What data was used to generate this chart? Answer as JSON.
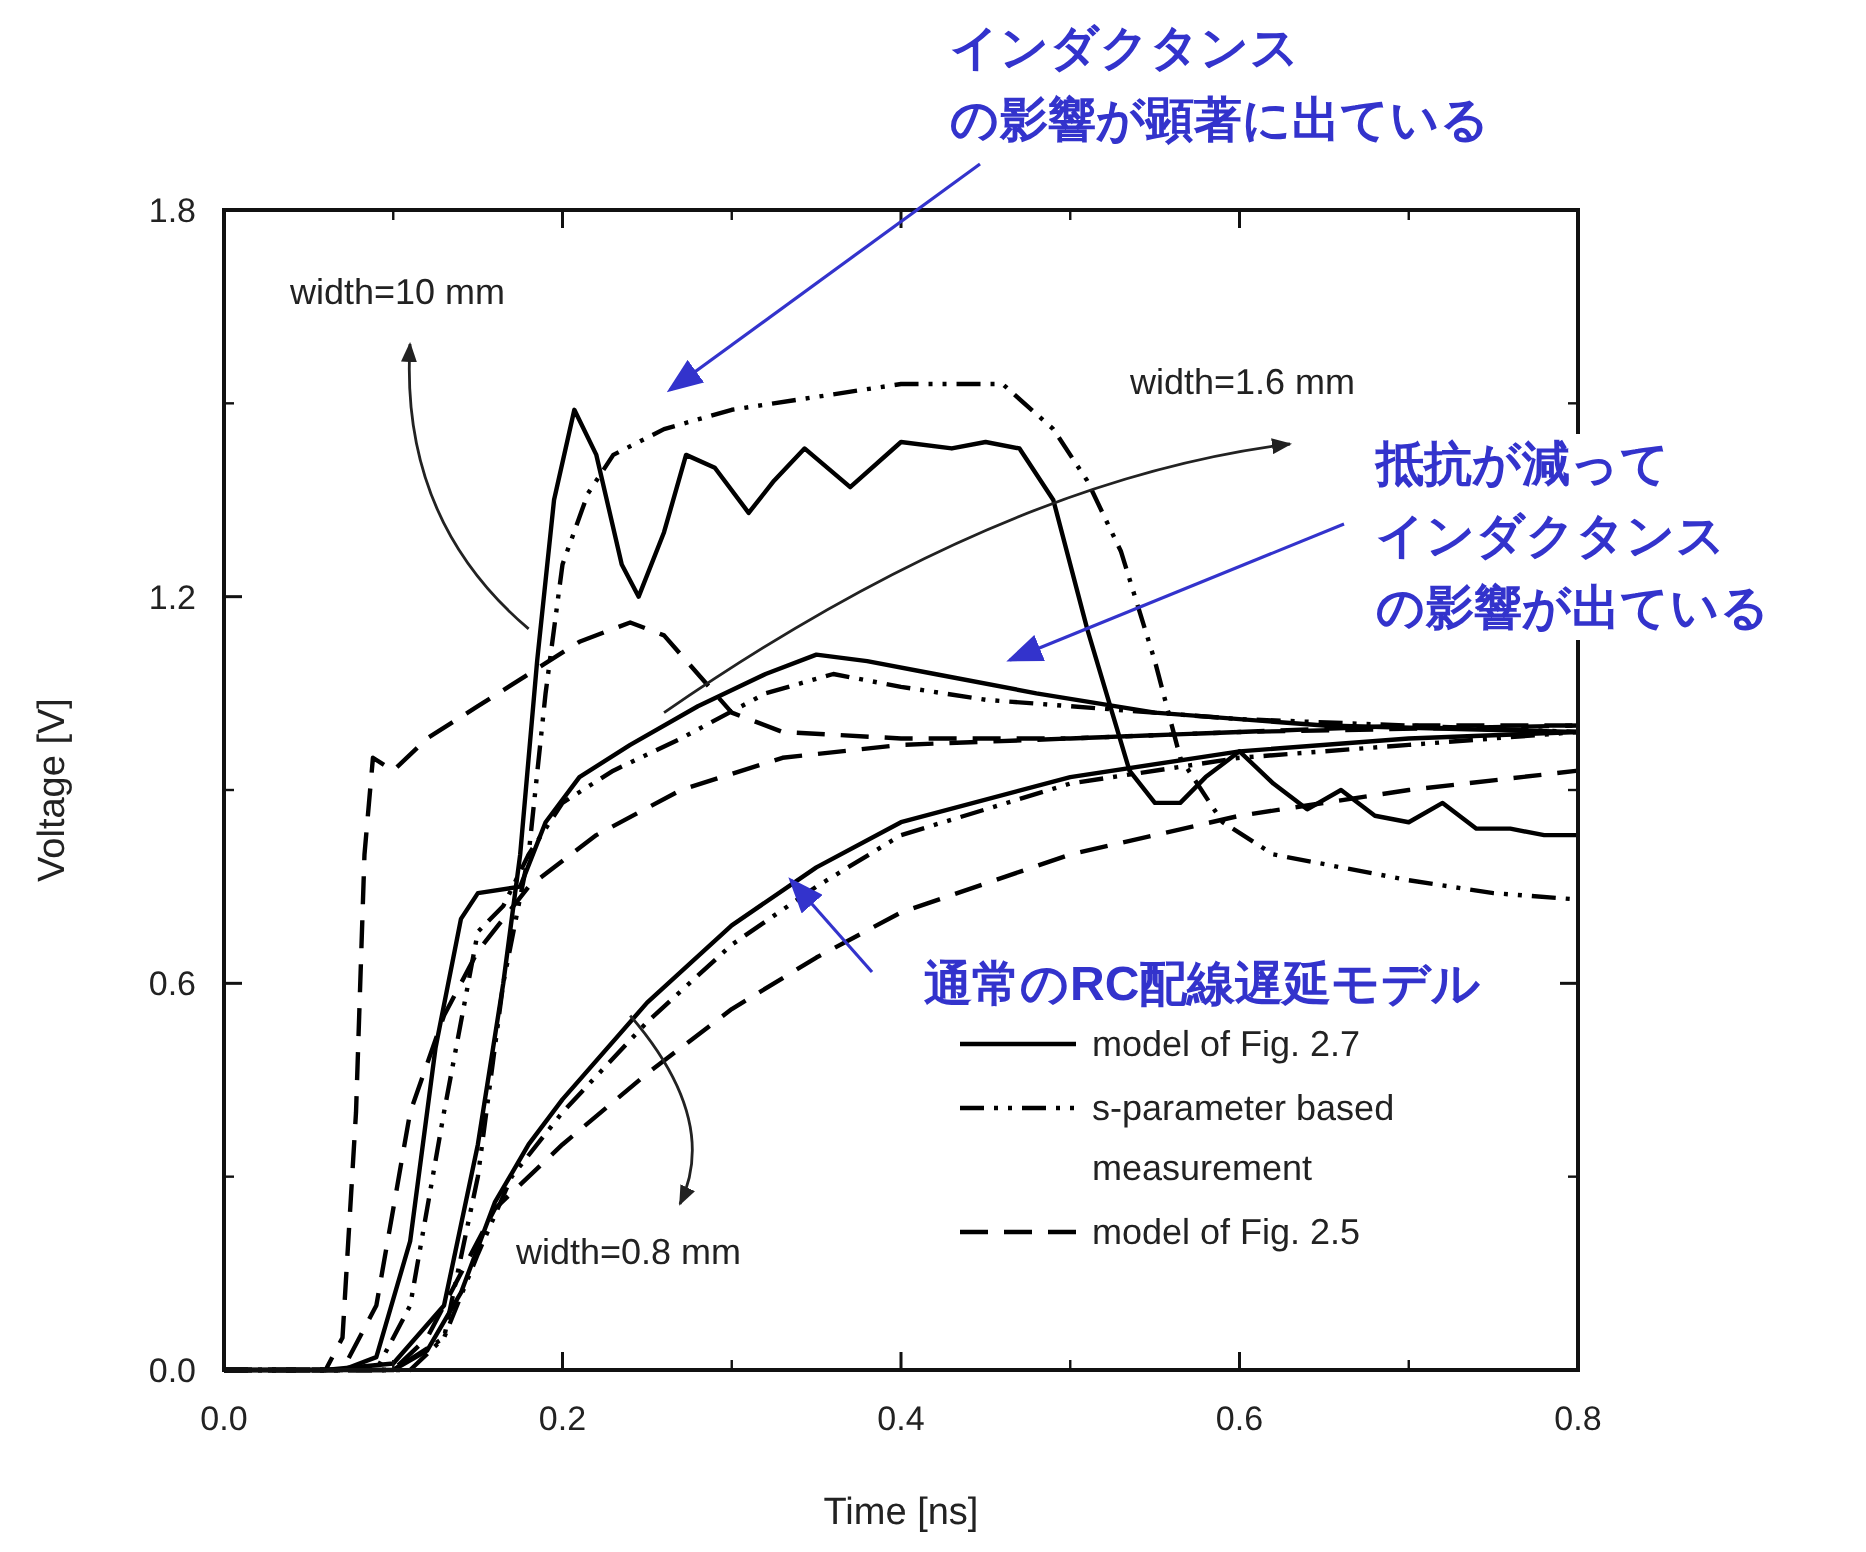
{
  "chart_data": {
    "type": "line",
    "xlabel": "Time [ns]",
    "ylabel": "Voltage [V]",
    "xlim": [
      0,
      0.8
    ],
    "xticks": [
      {
        "value": 0,
        "label": "0.0"
      },
      {
        "value": 0.2,
        "label": "0.2"
      },
      {
        "value": 0.4,
        "label": "0.4"
      },
      {
        "value": 0.6,
        "label": "0.6"
      },
      {
        "value": 0.8,
        "label": "0.8"
      }
    ],
    "ylim": [
      0,
      1.8
    ],
    "yticks": [
      {
        "value": 0,
        "label": "0.0"
      },
      {
        "value": 0.6,
        "label": "0.6"
      },
      {
        "value": 1.2,
        "label": "1.2"
      },
      {
        "value": 1.8,
        "label": "1.8"
      }
    ],
    "grid": false,
    "legend": "bottom right",
    "series": [
      {
        "name": "model of Fig. 2.7",
        "color": "#000000",
        "line_style": "solid",
        "x": [
          0,
          0.06,
          0.1,
          0.13,
          0.15,
          0.165,
          0.175,
          0.185,
          0.195,
          0.207,
          0.22,
          0.235,
          0.245,
          0.26,
          0.273,
          0.29,
          0.31,
          0.325,
          0.343,
          0.37,
          0.4,
          0.43,
          0.45,
          0.47,
          0.49,
          0.51,
          0.535,
          0.55,
          0.565,
          0.58,
          0.6,
          0.62,
          0.64,
          0.66,
          0.68,
          0.7,
          0.72,
          0.74,
          0.76,
          0.78,
          0.8
        ],
        "values": [
          0,
          0,
          0.01,
          0.1,
          0.35,
          0.6,
          0.8,
          1.1,
          1.35,
          1.49,
          1.42,
          1.25,
          1.2,
          1.3,
          1.42,
          1.4,
          1.33,
          1.38,
          1.43,
          1.37,
          1.44,
          1.43,
          1.44,
          1.43,
          1.35,
          1.15,
          0.93,
          0.88,
          0.88,
          0.92,
          0.96,
          0.91,
          0.87,
          0.9,
          0.86,
          0.85,
          0.88,
          0.84,
          0.84,
          0.83,
          0.83
        ]
      },
      {
        "name": "s-parameter based measurement",
        "color": "#000000",
        "line_style": "dashdot",
        "x": [
          0,
          0.1,
          0.13,
          0.15,
          0.165,
          0.18,
          0.19,
          0.2,
          0.215,
          0.23,
          0.26,
          0.3,
          0.35,
          0.4,
          0.46,
          0.49,
          0.51,
          0.53,
          0.55,
          0.565,
          0.59,
          0.62,
          0.66,
          0.7,
          0.75,
          0.8
        ],
        "values": [
          0,
          0,
          0.05,
          0.3,
          0.6,
          0.8,
          1.05,
          1.25,
          1.36,
          1.42,
          1.46,
          1.49,
          1.51,
          1.53,
          1.53,
          1.46,
          1.38,
          1.27,
          1.1,
          0.95,
          0.85,
          0.8,
          0.78,
          0.76,
          0.74,
          0.73
        ]
      },
      {
        "name": "model of Fig. 2.5",
        "color": "#000000",
        "line_style": "dashed",
        "x": [
          0,
          0.06,
          0.07,
          0.078,
          0.083,
          0.088,
          0.1,
          0.12,
          0.15,
          0.18,
          0.21,
          0.24,
          0.26,
          0.28,
          0.3,
          0.33,
          0.4,
          0.5,
          0.6,
          0.7,
          0.8
        ],
        "values": [
          0,
          0,
          0.05,
          0.4,
          0.8,
          0.95,
          0.93,
          0.98,
          1.03,
          1.08,
          1.13,
          1.16,
          1.14,
          1.08,
          1.02,
          0.99,
          0.98,
          0.98,
          0.99,
          1.0,
          1.0
        ]
      },
      {
        "color": "#000000",
        "line_style": "solid",
        "x": [
          0,
          0.07,
          0.09,
          0.11,
          0.125,
          0.14,
          0.15,
          0.175,
          0.19,
          0.21,
          0.24,
          0.28,
          0.32,
          0.35,
          0.38,
          0.42,
          0.48,
          0.55,
          0.65,
          0.8
        ],
        "values": [
          0,
          0,
          0.02,
          0.2,
          0.5,
          0.7,
          0.74,
          0.75,
          0.85,
          0.92,
          0.97,
          1.03,
          1.08,
          1.11,
          1.1,
          1.08,
          1.05,
          1.02,
          1.0,
          0.99
        ]
      },
      {
        "color": "#000000",
        "line_style": "dashdot",
        "x": [
          0,
          0.09,
          0.11,
          0.13,
          0.15,
          0.165,
          0.18,
          0.2,
          0.23,
          0.27,
          0.32,
          0.36,
          0.4,
          0.45,
          0.5,
          0.6,
          0.7,
          0.8
        ],
        "values": [
          0,
          0,
          0.1,
          0.4,
          0.68,
          0.72,
          0.8,
          0.88,
          0.93,
          0.98,
          1.05,
          1.08,
          1.06,
          1.04,
          1.03,
          1.01,
          1.0,
          0.99
        ]
      },
      {
        "color": "#000000",
        "line_style": "dashed",
        "x": [
          0,
          0.07,
          0.09,
          0.11,
          0.13,
          0.15,
          0.18,
          0.22,
          0.27,
          0.33,
          0.4,
          0.5,
          0.6,
          0.8
        ],
        "values": [
          0,
          0,
          0.1,
          0.4,
          0.55,
          0.65,
          0.75,
          0.83,
          0.9,
          0.95,
          0.97,
          0.98,
          0.99,
          1.0
        ]
      },
      {
        "color": "#000000",
        "line_style": "solid",
        "x": [
          0,
          0.1,
          0.12,
          0.14,
          0.16,
          0.18,
          0.2,
          0.25,
          0.3,
          0.35,
          0.4,
          0.5,
          0.6,
          0.7,
          0.8
        ],
        "values": [
          0,
          0,
          0.03,
          0.12,
          0.26,
          0.35,
          0.42,
          0.57,
          0.69,
          0.78,
          0.85,
          0.92,
          0.96,
          0.98,
          0.99
        ]
      },
      {
        "color": "#000000",
        "line_style": "dashdot",
        "x": [
          0,
          0.11,
          0.13,
          0.15,
          0.17,
          0.2,
          0.25,
          0.3,
          0.35,
          0.4,
          0.5,
          0.6,
          0.7,
          0.8
        ],
        "values": [
          0,
          0,
          0.05,
          0.18,
          0.3,
          0.4,
          0.54,
          0.66,
          0.75,
          0.83,
          0.91,
          0.95,
          0.97,
          0.99
        ]
      },
      {
        "color": "#000000",
        "line_style": "dashed",
        "x": [
          0,
          0.1,
          0.12,
          0.14,
          0.16,
          0.2,
          0.25,
          0.3,
          0.35,
          0.4,
          0.5,
          0.6,
          0.7,
          0.8
        ],
        "values": [
          0,
          0,
          0.05,
          0.15,
          0.25,
          0.35,
          0.46,
          0.56,
          0.64,
          0.71,
          0.8,
          0.86,
          0.9,
          0.93
        ]
      }
    ],
    "annotations": [
      {
        "text": "width=10 mm",
        "x": 0.18,
        "y": 1.15
      },
      {
        "text": "width=1.6 mm",
        "x": 0.26,
        "y": 1.02
      },
      {
        "text": "width=0.8 mm",
        "x": 0.24,
        "y": 0.55
      },
      "インダクタンスの影響が顕著に出ている",
      "抵抗が減ってインダクタンスの影響が出ている",
      {
        "text": "通常のRC配線遅延モデル",
        "x": 0.335,
        "y": 0.76
      }
    ]
  }
}
